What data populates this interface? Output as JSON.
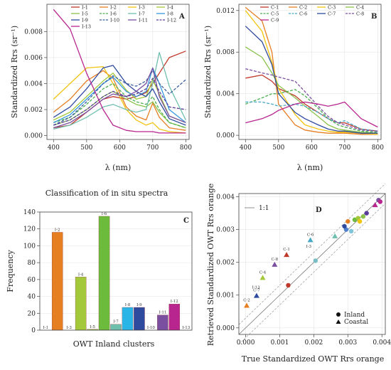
{
  "figure": {
    "caption_a": "Classification of in situ spectra"
  },
  "chart_data": [
    {
      "id": "A",
      "type": "line",
      "panel_label": "A",
      "xlabel": "λ (nm)",
      "ylabel": "Standardized Rrs (sr⁻¹)",
      "xlim": [
        380,
        810
      ],
      "ylim": [
        -0.0003,
        0.0101
      ],
      "xticks": [
        400,
        500,
        600,
        700,
        800
      ],
      "yticks": [
        0.0,
        0.002,
        0.004,
        0.006,
        0.008
      ],
      "grid": true,
      "legend_position": "top",
      "x": [
        400,
        450,
        500,
        550,
        580,
        620,
        650,
        680,
        700,
        720,
        750,
        800
      ],
      "series": [
        {
          "name": "I-1",
          "color": "#c0392b",
          "dash": false,
          "values": [
            0.0006,
            0.0008,
            0.0018,
            0.0028,
            0.003,
            0.0028,
            0.003,
            0.0033,
            0.004,
            0.0048,
            0.006,
            0.0065
          ]
        },
        {
          "name": "I-2",
          "color": "#e67e22",
          "dash": false,
          "values": [
            0.0018,
            0.0028,
            0.0042,
            0.005,
            0.0044,
            0.0022,
            0.0015,
            0.0012,
            0.0025,
            0.0014,
            0.0006,
            0.0004
          ]
        },
        {
          "name": "I-3",
          "color": "#f1c40f",
          "dash": false,
          "values": [
            0.0028,
            0.004,
            0.0052,
            0.0053,
            0.004,
            0.002,
            0.0012,
            0.0008,
            0.001,
            0.0005,
            0.0003,
            0.0002
          ]
        },
        {
          "name": "I-4",
          "color": "#a3c93a",
          "dash": false,
          "values": [
            0.0012,
            0.0018,
            0.003,
            0.0042,
            0.0048,
            0.0035,
            0.0028,
            0.003,
            0.0043,
            0.0032,
            0.0015,
            0.001
          ]
        },
        {
          "name": "I-5",
          "color": "#8bc34a",
          "dash": false,
          "values": [
            0.0008,
            0.0012,
            0.002,
            0.003,
            0.0034,
            0.0028,
            0.0024,
            0.0022,
            0.0026,
            0.0018,
            0.001,
            0.0006
          ]
        },
        {
          "name": "I-6",
          "color": "#4caf50",
          "dash": true,
          "values": [
            0.001,
            0.0014,
            0.0024,
            0.0036,
            0.004,
            0.003,
            0.0026,
            0.0024,
            0.003,
            0.002,
            0.001,
            0.0006
          ]
        },
        {
          "name": "I-7",
          "color": "#6fbfae",
          "dash": false,
          "values": [
            0.0005,
            0.0008,
            0.0014,
            0.0022,
            0.0024,
            0.002,
            0.0018,
            0.002,
            0.004,
            0.0064,
            0.0038,
            0.0012
          ]
        },
        {
          "name": "I-8",
          "color": "#3498db",
          "dash": false,
          "values": [
            0.001,
            0.0016,
            0.0028,
            0.004,
            0.0045,
            0.0034,
            0.003,
            0.0034,
            0.0052,
            0.004,
            0.002,
            0.001
          ]
        },
        {
          "name": "I-9",
          "color": "#2e4a9e",
          "dash": false,
          "values": [
            0.0014,
            0.0022,
            0.0036,
            0.0052,
            0.0054,
            0.004,
            0.0034,
            0.003,
            0.0036,
            0.0026,
            0.0013,
            0.0008
          ]
        },
        {
          "name": "I-10",
          "color": "#3b5fa0",
          "dash": true,
          "values": [
            0.0008,
            0.0014,
            0.0026,
            0.004,
            0.0046,
            0.004,
            0.0038,
            0.0042,
            0.005,
            0.004,
            0.0032,
            0.0043
          ]
        },
        {
          "name": "I-11",
          "color": "#7b4fa0",
          "dash": false,
          "values": [
            0.0006,
            0.001,
            0.0018,
            0.0028,
            0.0032,
            0.003,
            0.0034,
            0.004,
            0.0052,
            0.003,
            0.0015,
            0.001
          ]
        },
        {
          "name": "I-12",
          "color": "#5a3d9a",
          "dash": true,
          "values": [
            0.0008,
            0.0012,
            0.002,
            0.003,
            0.0034,
            0.003,
            0.0032,
            0.0036,
            0.0044,
            0.0034,
            0.0022,
            0.002
          ]
        },
        {
          "name": "I-13",
          "color": "#b8258f",
          "dash": false,
          "values": [
            0.0097,
            0.0082,
            0.0048,
            0.002,
            0.0008,
            0.0004,
            0.0003,
            0.0003,
            0.0003,
            0.0002,
            0.0002,
            0.0002
          ]
        }
      ]
    },
    {
      "id": "B",
      "type": "line",
      "panel_label": "B",
      "xlabel": "λ (nm)",
      "ylabel": "Standardized Rrs (sr⁻¹)",
      "xlim": [
        380,
        810
      ],
      "ylim": [
        -0.0004,
        0.0126
      ],
      "xticks": [
        400,
        500,
        600,
        700,
        800
      ],
      "yticks": [
        0.0,
        0.004,
        0.008,
        0.012
      ],
      "grid": true,
      "legend_position": "top",
      "x": [
        400,
        450,
        480,
        500,
        550,
        580,
        620,
        650,
        680,
        700,
        750,
        800
      ],
      "series": [
        {
          "name": "C-1",
          "color": "#c0392b",
          "dash": false,
          "values": [
            0.0055,
            0.0058,
            0.0052,
            0.0045,
            0.0038,
            0.003,
            0.0022,
            0.0016,
            0.0012,
            0.0012,
            0.0006,
            0.0004
          ]
        },
        {
          "name": "C-2",
          "color": "#e67e22",
          "dash": false,
          "values": [
            0.0123,
            0.011,
            0.008,
            0.003,
            0.001,
            0.0005,
            0.0003,
            0.0002,
            0.0002,
            0.0002,
            0.0001,
            0.0001
          ]
        },
        {
          "name": "C-3",
          "color": "#f1c40f",
          "dash": false,
          "values": [
            0.012,
            0.01,
            0.007,
            0.0045,
            0.002,
            0.001,
            0.0006,
            0.0004,
            0.0003,
            0.0003,
            0.0002,
            0.0001
          ]
        },
        {
          "name": "C-4",
          "color": "#8bc34a",
          "dash": false,
          "values": [
            0.0085,
            0.0075,
            0.006,
            0.0048,
            0.0036,
            0.0028,
            0.0018,
            0.001,
            0.0006,
            0.0005,
            0.0003,
            0.0002
          ]
        },
        {
          "name": "C-5",
          "color": "#4caf50",
          "dash": true,
          "values": [
            0.003,
            0.0036,
            0.004,
            0.004,
            0.0044,
            0.0038,
            0.0026,
            0.0016,
            0.001,
            0.0008,
            0.0004,
            0.0003
          ]
        },
        {
          "name": "C-6",
          "color": "#48a9c5",
          "dash": true,
          "values": [
            0.0032,
            0.0032,
            0.003,
            0.0028,
            0.003,
            0.0028,
            0.0022,
            0.0016,
            0.0012,
            0.0014,
            0.0006,
            0.0004
          ]
        },
        {
          "name": "C-7",
          "color": "#2e4a9e",
          "dash": false,
          "values": [
            0.0105,
            0.009,
            0.0068,
            0.004,
            0.0022,
            0.0016,
            0.001,
            0.0006,
            0.0004,
            0.0004,
            0.0002,
            0.0002
          ]
        },
        {
          "name": "C-8",
          "color": "#7b4fa0",
          "dash": true,
          "values": [
            0.0064,
            0.006,
            0.0058,
            0.0056,
            0.0052,
            0.0042,
            0.0028,
            0.0018,
            0.0012,
            0.001,
            0.0005,
            0.0004
          ]
        },
        {
          "name": "C-9",
          "color": "#b8258f",
          "dash": false,
          "values": [
            0.0012,
            0.0016,
            0.002,
            0.0024,
            0.003,
            0.0032,
            0.003,
            0.0028,
            0.003,
            0.0032,
            0.0016,
            0.0008
          ]
        }
      ]
    },
    {
      "id": "C",
      "type": "bar",
      "panel_label": "C",
      "xlabel": "OWT Inland clusters",
      "ylabel": "Frequency",
      "ylim": [
        0,
        140
      ],
      "yticks": [
        0,
        20,
        40,
        60,
        80,
        100,
        120,
        140
      ],
      "grid": true,
      "categories": [
        "I-1",
        "I-2",
        "I-3",
        "I-4",
        "I-5",
        "I-6",
        "I-7",
        "I-8",
        "I-9",
        "I-10",
        "I-11",
        "I-12",
        "I-13"
      ],
      "values": [
        0,
        116,
        0,
        63,
        1,
        135,
        7,
        27,
        27,
        0,
        18,
        31,
        0
      ],
      "colors": [
        "#c0392b",
        "#e67e22",
        "#f1c40f",
        "#a3c93a",
        "#8bc34a",
        "#6cbb3c",
        "#6fbfae",
        "#29b6e6",
        "#2e4a9e",
        "#3b5fa0",
        "#7b4fa0",
        "#b8258f",
        "#b8258f"
      ]
    },
    {
      "id": "D",
      "type": "scatter",
      "panel_label": "D",
      "xlabel": "True Standardized OWT Rrs orange",
      "ylabel": "Retrieved Standardized OWT Rrs orange",
      "xlim": [
        -0.0002,
        0.0041
      ],
      "ylim": [
        -0.0002,
        0.0041
      ],
      "xticks": [
        0.0,
        0.001,
        0.002,
        0.003,
        0.004
      ],
      "yticks": [
        0.0,
        0.001,
        0.002,
        0.003,
        0.004
      ],
      "tick_labels": [
        "0.000",
        "0.001",
        "0.002",
        "0.003",
        "0.004"
      ],
      "grid": true,
      "line_legend": "1:1",
      "shape_legend": [
        "Inland",
        "Coastal"
      ],
      "points": [
        {
          "x": 0.00125,
          "y": 0.0013,
          "shape": "circle",
          "color": "#c0392b",
          "label": ""
        },
        {
          "x": 0.00205,
          "y": 0.00205,
          "shape": "circle",
          "color": "#78bcc4",
          "label": ""
        },
        {
          "x": 0.00295,
          "y": 0.003,
          "shape": "circle",
          "color": "#4f7fcf",
          "label": ""
        },
        {
          "x": 0.003,
          "y": 0.00325,
          "shape": "circle",
          "color": "#e67e22",
          "label": ""
        },
        {
          "x": 0.0031,
          "y": 0.00295,
          "shape": "circle",
          "color": "#7fc4d8",
          "label": ""
        },
        {
          "x": 0.0032,
          "y": 0.0033,
          "shape": "circle",
          "color": "#6cbb3c",
          "label": ""
        },
        {
          "x": 0.0033,
          "y": 0.00335,
          "shape": "circle",
          "color": "#a3c93a",
          "label": ""
        },
        {
          "x": 0.00335,
          "y": 0.00325,
          "shape": "circle",
          "color": "#f1c40f",
          "label": ""
        },
        {
          "x": 0.00345,
          "y": 0.0034,
          "shape": "circle",
          "color": "#8bc34a",
          "label": ""
        },
        {
          "x": 0.0029,
          "y": 0.0031,
          "shape": "circle",
          "color": "#2e4a9e",
          "label": ""
        },
        {
          "x": 0.00355,
          "y": 0.0035,
          "shape": "circle",
          "color": "#5a3d9a",
          "label": ""
        },
        {
          "x": 0.0039,
          "y": 0.0039,
          "shape": "circle",
          "color": "#7b4fa0",
          "label": ""
        },
        {
          "x": 0.00395,
          "y": 0.00385,
          "shape": "circle",
          "color": "#b8258f",
          "label": ""
        },
        {
          "x": 3e-05,
          "y": 0.00068,
          "shape": "triangle",
          "color": "#e67e22",
          "label": "C-2"
        },
        {
          "x": 0.00032,
          "y": 0.00098,
          "shape": "triangle",
          "color": "#2e4a9e",
          "label": "C-7"
        },
        {
          "x": 0.0005,
          "y": 0.00153,
          "shape": "triangle",
          "color": "#a3c93a",
          "label": "C-4"
        },
        {
          "x": 0.00085,
          "y": 0.00193,
          "shape": "triangle",
          "color": "#7b4fa0",
          "label": "C-8"
        },
        {
          "x": 0.0012,
          "y": 0.00223,
          "shape": "triangle",
          "color": "#c0392b",
          "label": "C-1"
        },
        {
          "x": 0.0019,
          "y": 0.00268,
          "shape": "triangle",
          "color": "#48a9c5",
          "label": "C-6"
        },
        {
          "x": 0.00262,
          "y": 0.0028,
          "shape": "triangle",
          "color": "#6fbfae",
          "label": ""
        },
        {
          "x": 0.0038,
          "y": 0.00375,
          "shape": "triangle",
          "color": "#b8258f",
          "label": ""
        }
      ],
      "point_labels": [
        {
          "text": "I-13",
          "x": 0.0003,
          "y": 0.0012
        },
        {
          "text": "I-3",
          "x": 0.00185,
          "y": 0.00245
        }
      ]
    }
  ]
}
